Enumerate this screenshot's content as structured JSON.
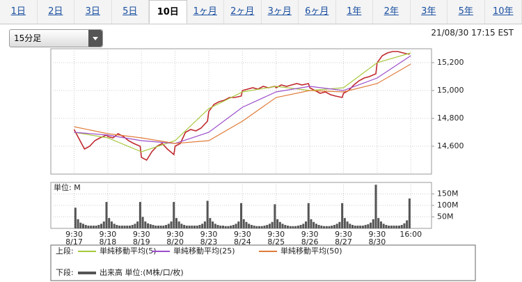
{
  "tabs": [
    "1日",
    "2日",
    "3日",
    "5日",
    "10日",
    "1ヶ月",
    "2ヶ月",
    "3ヶ月",
    "6ヶ月",
    "1年",
    "2年",
    "3年",
    "5年",
    "10年"
  ],
  "active_tab": 4,
  "interval": "15分足",
  "timestamp": "21/08/30 17:15 EST",
  "legend": {
    "upper_label": "上段:",
    "lower_label": "下段:"
  },
  "chart_data": [
    {
      "type": "line",
      "xlim": [
        -18,
        276
      ],
      "ylim": [
        14400,
        15300
      ],
      "yticks": [
        {
          "value": 14600,
          "label": "14,600"
        },
        {
          "value": 14800,
          "label": "14,800"
        },
        {
          "value": 15000,
          "label": "15,000"
        },
        {
          "value": 15200,
          "label": "15,200"
        }
      ],
      "grid": true,
      "series": [
        {
          "color": "#c0282d",
          "x": [
            0,
            4,
            8,
            12,
            16,
            20,
            25,
            26,
            30,
            34,
            38,
            42,
            46,
            51,
            52,
            56,
            60,
            64,
            68,
            72,
            77,
            78,
            82,
            86,
            90,
            94,
            98,
            103,
            104,
            108,
            112,
            116,
            120,
            124,
            129,
            130,
            134,
            138,
            142,
            146,
            150,
            155,
            156,
            160,
            164,
            168,
            172,
            176,
            181,
            182,
            186,
            190,
            194,
            198,
            202,
            207,
            208,
            212,
            216,
            220,
            224,
            228,
            233,
            234,
            238,
            242,
            246,
            250,
            254,
            259
          ],
          "values": [
            14720,
            14650,
            14580,
            14600,
            14640,
            14660,
            14680,
            14670,
            14660,
            14690,
            14670,
            14640,
            14620,
            14600,
            14520,
            14500,
            14560,
            14600,
            14620,
            14580,
            14540,
            14600,
            14620,
            14700,
            14720,
            14710,
            14730,
            14780,
            14850,
            14900,
            14920,
            14930,
            14950,
            14950,
            14960,
            15000,
            15010,
            15020,
            15010,
            15030,
            15020,
            15030,
            15020,
            15040,
            15030,
            15040,
            15050,
            15040,
            15050,
            15020,
            15000,
            14980,
            14990,
            14970,
            14960,
            14950,
            14980,
            15000,
            15040,
            15070,
            15090,
            15100,
            15120,
            15200,
            15250,
            15270,
            15280,
            15280,
            15270,
            15260
          ]
        },
        {
          "name": "単純移動平均(5)",
          "color": "#a8c83c",
          "x": [
            0,
            26,
            52,
            78,
            104,
            130,
            156,
            182,
            208,
            234,
            260
          ],
          "values": [
            14700,
            14660,
            14560,
            14640,
            14870,
            14990,
            15030,
            15000,
            15020,
            15200,
            15270
          ]
        },
        {
          "name": "単純移動平均(25)",
          "color": "#9b4dca",
          "x": [
            0,
            26,
            52,
            78,
            104,
            130,
            156,
            182,
            208,
            234,
            260
          ],
          "values": [
            14700,
            14680,
            14640,
            14620,
            14700,
            14880,
            14990,
            15030,
            15000,
            15090,
            15250
          ]
        },
        {
          "name": "単純移動平均(50)",
          "color": "#e07b39",
          "x": [
            0,
            26,
            52,
            78,
            104,
            130,
            156,
            182,
            208,
            234,
            260
          ],
          "values": [
            14740,
            14690,
            14660,
            14620,
            14640,
            14780,
            14950,
            15000,
            14990,
            15050,
            15190
          ]
        }
      ]
    },
    {
      "type": "bar",
      "unit_label": "単位: M",
      "xlim": [
        -18,
        276
      ],
      "ylim": [
        0,
        200
      ],
      "yticks": [
        {
          "value": 50,
          "label": "50M"
        },
        {
          "value": 100,
          "label": "100M"
        },
        {
          "value": 150,
          "label": "150M"
        }
      ],
      "xticks": [
        {
          "value": 0,
          "label": "9:30"
        },
        {
          "value": 26,
          "label": "9:30"
        },
        {
          "value": 52,
          "label": "9:30"
        },
        {
          "value": 78,
          "label": "9:30"
        },
        {
          "value": 104,
          "label": "9:30"
        },
        {
          "value": 130,
          "label": "9:30"
        },
        {
          "value": 156,
          "label": "9:30"
        },
        {
          "value": 182,
          "label": "9:30"
        },
        {
          "value": 208,
          "label": "9:30"
        },
        {
          "value": 234,
          "label": "9:30"
        },
        {
          "value": 260,
          "label": "16:00"
        }
      ],
      "xtick_dates": [
        "8/17",
        "8/18",
        "8/19",
        "8/20",
        "8/23",
        "8/24",
        "8/25",
        "8/26",
        "8/27",
        "8/30"
      ],
      "grid": true,
      "series": [
        {
          "name": "出来高 単位:(M株/口/枚)",
          "color": "#555555",
          "x": [
            1,
            3,
            5,
            7,
            9,
            11,
            13,
            15,
            17,
            19,
            21,
            23,
            25,
            27,
            29,
            31,
            33,
            35,
            37,
            39,
            41,
            43,
            45,
            47,
            49,
            51,
            53,
            55,
            57,
            59,
            61,
            63,
            65,
            67,
            69,
            71,
            73,
            75,
            77,
            79,
            81,
            83,
            85,
            87,
            89,
            91,
            93,
            95,
            97,
            99,
            101,
            103,
            105,
            107,
            109,
            111,
            113,
            115,
            117,
            119,
            121,
            123,
            125,
            127,
            129,
            131,
            133,
            135,
            137,
            139,
            141,
            143,
            145,
            147,
            149,
            151,
            153,
            155,
            157,
            159,
            161,
            163,
            165,
            167,
            169,
            171,
            173,
            175,
            177,
            179,
            181,
            183,
            185,
            187,
            189,
            191,
            193,
            195,
            197,
            199,
            201,
            203,
            205,
            207,
            209,
            211,
            213,
            215,
            217,
            219,
            221,
            223,
            225,
            227,
            229,
            231,
            233,
            235,
            237,
            239,
            241,
            243,
            245,
            247,
            249,
            251,
            253,
            255,
            257,
            259
          ],
          "values": [
            90,
            40,
            25,
            20,
            15,
            12,
            12,
            12,
            12,
            15,
            20,
            30,
            115,
            45,
            30,
            20,
            15,
            12,
            12,
            12,
            12,
            12,
            15,
            20,
            30,
            115,
            50,
            30,
            22,
            18,
            15,
            12,
            12,
            12,
            12,
            15,
            20,
            30,
            115,
            45,
            30,
            20,
            15,
            12,
            12,
            12,
            12,
            12,
            15,
            20,
            30,
            120,
            45,
            30,
            20,
            15,
            12,
            12,
            10,
            10,
            12,
            15,
            20,
            30,
            110,
            40,
            28,
            20,
            15,
            12,
            10,
            10,
            10,
            12,
            15,
            20,
            28,
            105,
            40,
            28,
            20,
            15,
            12,
            10,
            10,
            10,
            12,
            15,
            20,
            30,
            110,
            40,
            28,
            20,
            15,
            12,
            10,
            10,
            10,
            12,
            15,
            20,
            28,
            110,
            45,
            30,
            20,
            15,
            12,
            12,
            12,
            12,
            15,
            18,
            25,
            40,
            190,
            45,
            30,
            20,
            15,
            12,
            12,
            12,
            12,
            12,
            15,
            22,
            35,
            130
          ]
        }
      ]
    }
  ]
}
